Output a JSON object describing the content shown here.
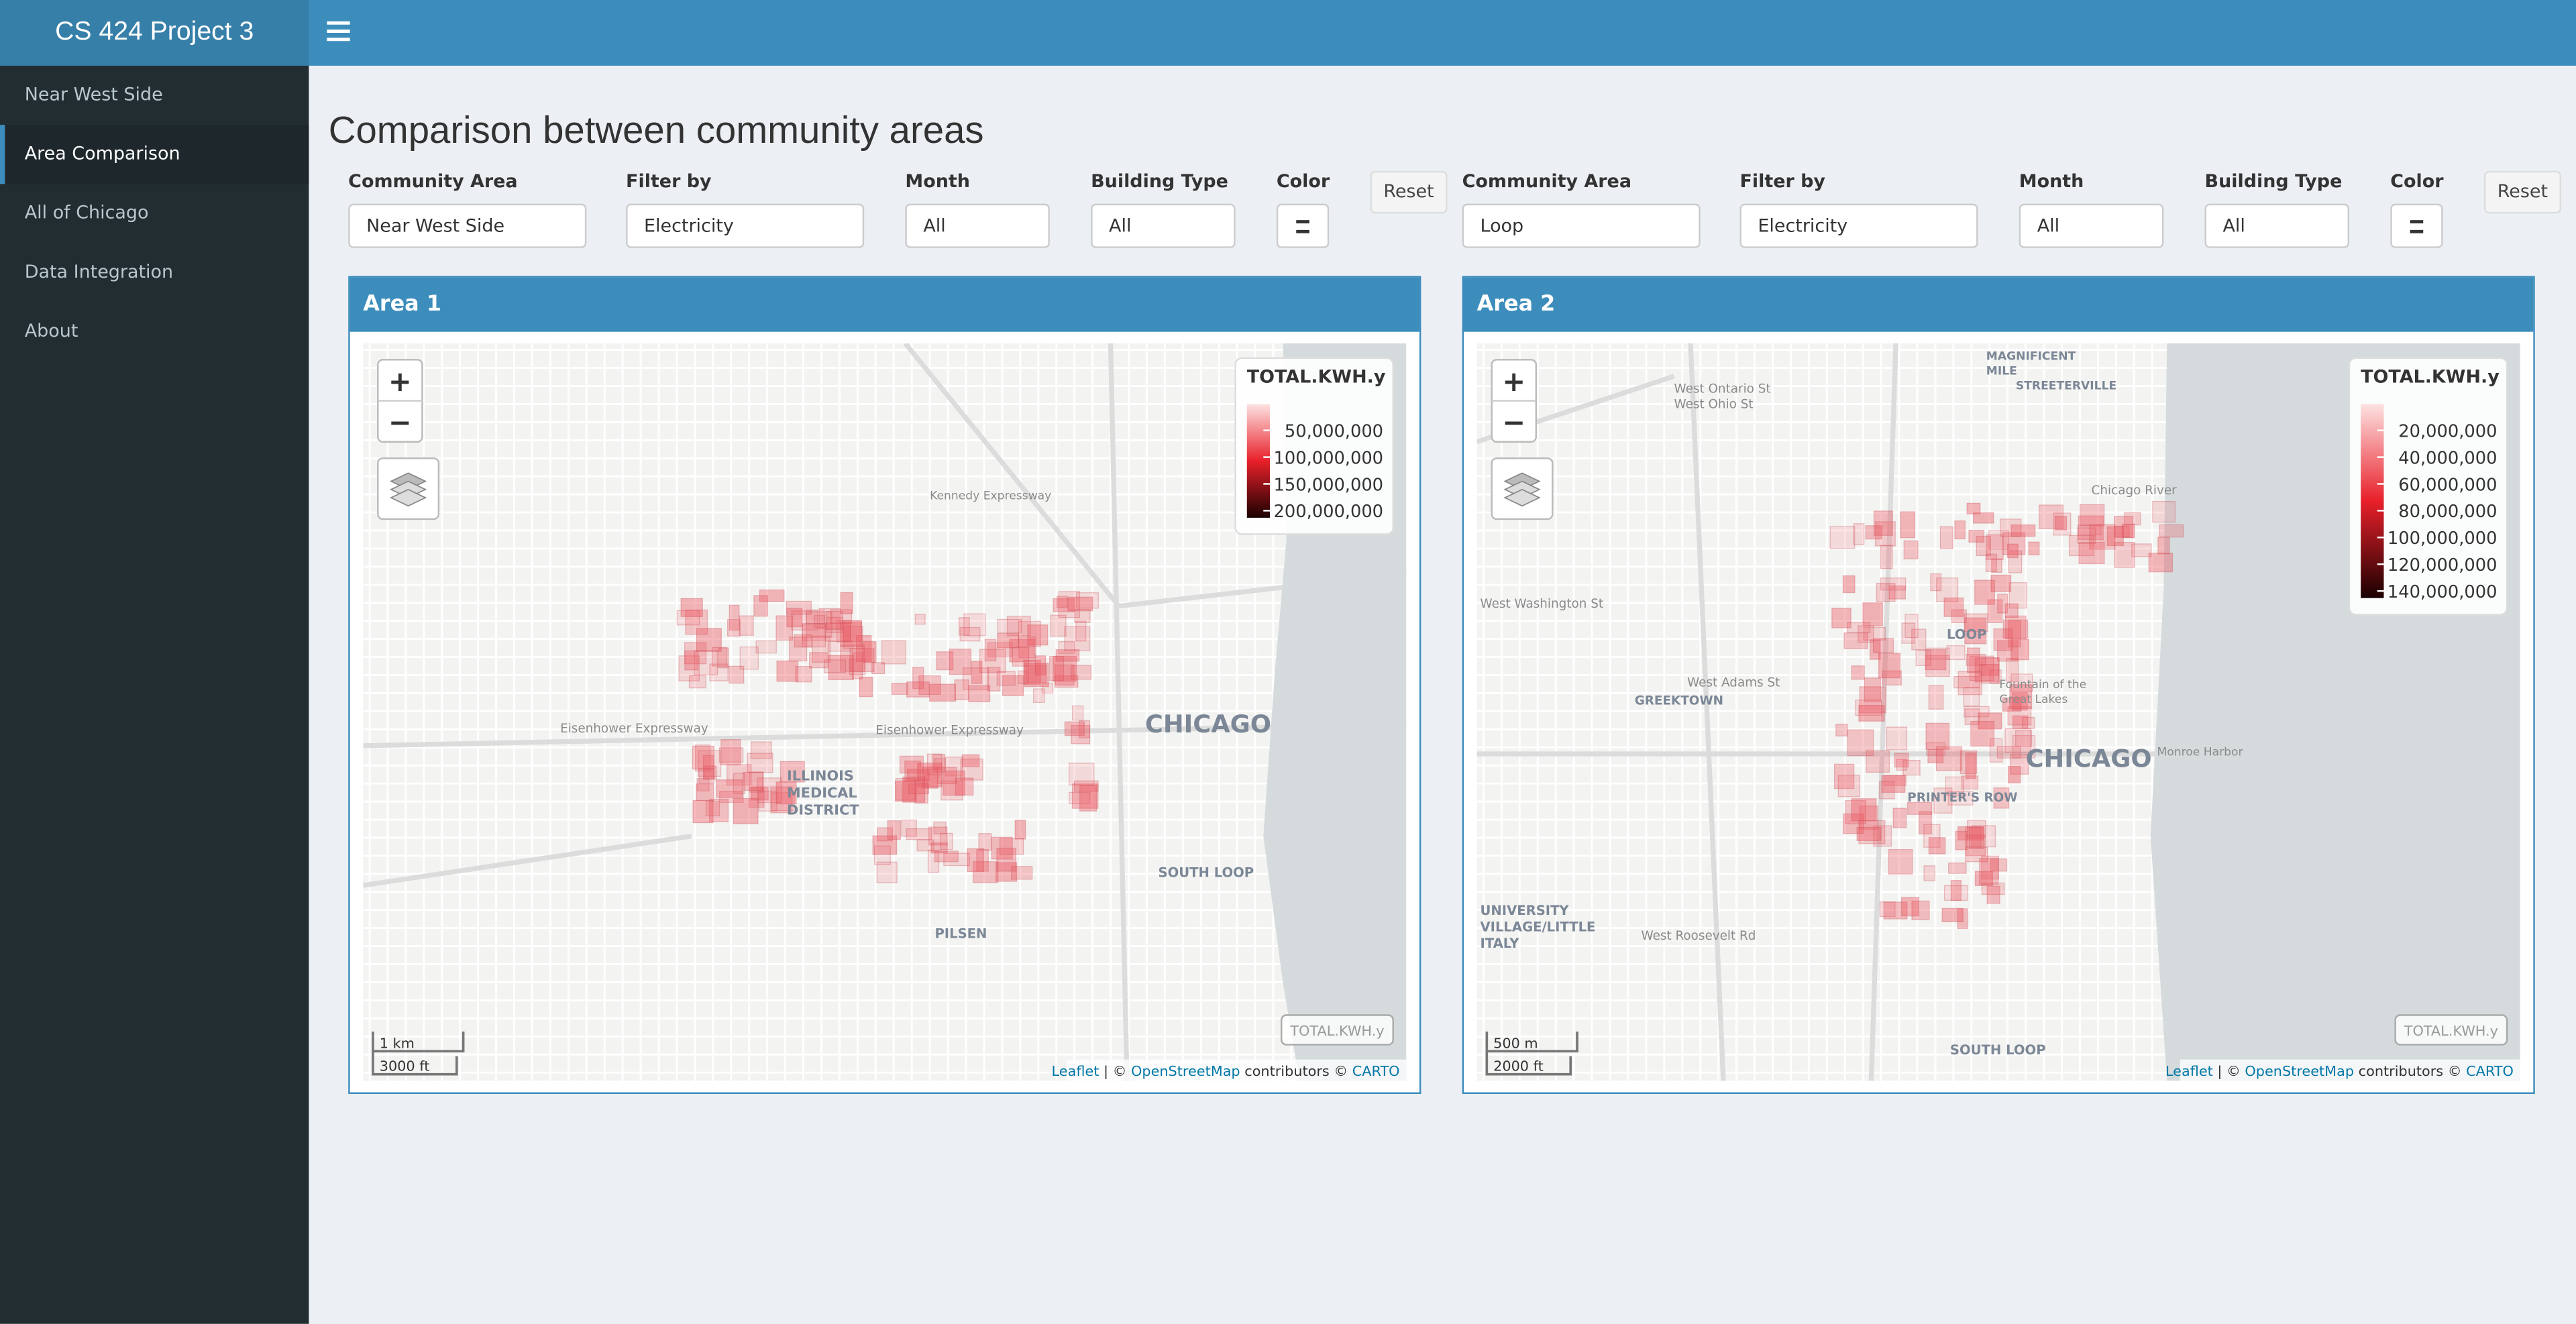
{
  "header": {
    "title": "CS 424 Project 3"
  },
  "sidebar": {
    "items": [
      "Near West Side",
      "Area Comparison",
      "All of Chicago",
      "Data Integration",
      "About"
    ]
  },
  "page": {
    "title": "Comparison between community areas"
  },
  "panels": [
    {
      "controls": [
        {
          "label": "Community Area",
          "value": "Near West Side"
        },
        {
          "label": "Filter by",
          "value": "Electricity"
        },
        {
          "label": "Month",
          "value": "All"
        },
        {
          "label": "Building Type",
          "value": "All"
        },
        {
          "label": "Color"
        }
      ],
      "reset": "Reset",
      "box_title": "Area 1",
      "map": {
        "legend_title": "TOTAL.KWH.y",
        "legend_labels": [
          "50,000,000",
          "100,000,000",
          "150,000,000",
          "200,000,000"
        ],
        "labels": [
          [
            "CHICAGO"
          ],
          [
            "ILLINOIS",
            "MEDICAL",
            "DISTRICT"
          ],
          [
            "SOUTH LOOP"
          ],
          [
            "PILSEN"
          ],
          [
            "Eisenhower Expressway"
          ],
          [
            "Eisenhower Expressway"
          ],
          [
            "Kennedy Expressway"
          ]
        ],
        "scale": [
          "1 km",
          "3000 ft"
        ],
        "zoom_in": "+",
        "zoom_out": "−",
        "control_label": "TOTAL.KWH.y",
        "attribution": [
          "Leaflet",
          " | © ",
          "OpenStreetMap",
          " contributors © ",
          "CARTO"
        ]
      }
    },
    {
      "controls": [
        {
          "label": "Community Area",
          "value": "Loop"
        },
        {
          "label": "Filter by",
          "value": "Electricity"
        },
        {
          "label": "Month",
          "value": "All"
        },
        {
          "label": "Building Type",
          "value": "All"
        },
        {
          "label": "Color"
        }
      ],
      "reset": "Reset",
      "box_title": "Area 2",
      "map": {
        "legend_title": "TOTAL.KWH.y",
        "legend_labels": [
          "20,000,000",
          "40,000,000",
          "60,000,000",
          "80,000,000",
          "100,000,000",
          "120,000,000",
          "140,000,000"
        ],
        "labels": [
          [
            "CHICAGO"
          ],
          [
            "LOOP"
          ],
          [
            "GREEKTOWN"
          ],
          [
            "PRINTER'S ROW"
          ],
          [
            "SOUTH LOOP"
          ],
          [
            "UNIVERSITY",
            "VILLAGE/LITTLE",
            "ITALY"
          ],
          [
            "MAGNIFICENT",
            "MILE"
          ],
          [
            "STREETERVILLE"
          ],
          [
            "West Washington St"
          ],
          [
            "West Adams St"
          ],
          [
            "West Roosevelt Rd"
          ],
          [
            "Chicago River"
          ],
          [
            "Monroe Harbor"
          ],
          [
            "Fountain of the",
            "Great Lakes"
          ],
          [
            "West Ontario St",
            "West Ohio St"
          ]
        ],
        "scale": [
          "500 m",
          "2000 ft"
        ],
        "zoom_in": "+",
        "zoom_out": "−",
        "control_label": "TOTAL.KWH.y",
        "attribution": [
          "Leaflet",
          " | © ",
          "OpenStreetMap",
          " contributors © ",
          "CARTO"
        ]
      }
    }
  ]
}
